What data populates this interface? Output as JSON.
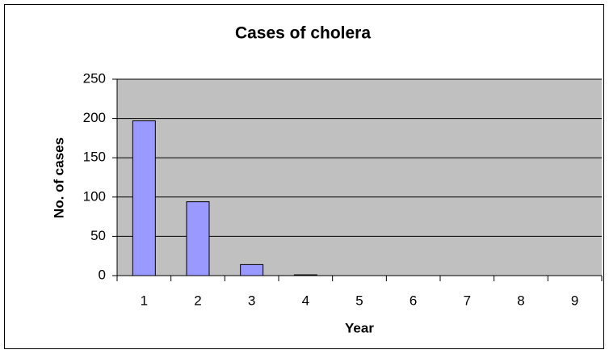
{
  "chart_data": {
    "type": "bar",
    "title": "Cases of cholera",
    "x_label": "Year",
    "y_label": "No. of cases",
    "categories": [
      "1",
      "2",
      "3",
      "4",
      "5",
      "6",
      "7",
      "8",
      "9"
    ],
    "values": [
      197,
      94,
      14,
      1,
      0,
      0,
      0,
      0,
      0
    ],
    "color": "#9999ff",
    "plot_background": "#c0c0c0",
    "ylim": [
      0,
      250
    ],
    "yticks": [
      0,
      50,
      100,
      150,
      200,
      250
    ],
    "grid": true
  }
}
